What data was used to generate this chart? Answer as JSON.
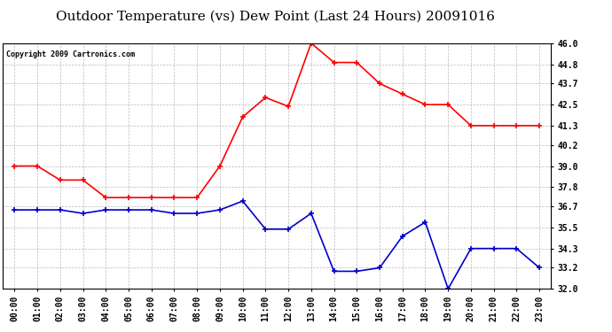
{
  "title": "Outdoor Temperature (vs) Dew Point (Last 24 Hours) 20091016",
  "copyright": "Copyright 2009 Cartronics.com",
  "x_labels": [
    "00:00",
    "01:00",
    "02:00",
    "03:00",
    "04:00",
    "05:00",
    "06:00",
    "07:00",
    "08:00",
    "09:00",
    "10:00",
    "11:00",
    "12:00",
    "13:00",
    "14:00",
    "15:00",
    "16:00",
    "17:00",
    "18:00",
    "19:00",
    "20:00",
    "21:00",
    "22:00",
    "23:00"
  ],
  "temp_data": [
    39.0,
    39.0,
    38.2,
    38.2,
    37.2,
    37.2,
    37.2,
    37.2,
    37.2,
    39.0,
    41.8,
    42.9,
    42.4,
    46.0,
    44.9,
    44.9,
    43.7,
    43.1,
    42.5,
    42.5,
    41.3,
    41.3,
    41.3,
    41.3
  ],
  "dew_data": [
    36.5,
    36.5,
    36.5,
    36.3,
    36.5,
    36.5,
    36.5,
    36.3,
    36.3,
    36.5,
    37.0,
    35.4,
    35.4,
    36.3,
    33.0,
    33.0,
    33.2,
    35.0,
    35.8,
    32.0,
    34.3,
    34.3,
    34.3,
    33.2
  ],
  "temp_color": "#FF0000",
  "dew_color": "#0000CC",
  "background_color": "#FFFFFF",
  "grid_color": "#AAAAAA",
  "ylim": [
    32.0,
    46.0
  ],
  "yticks": [
    32.0,
    33.2,
    34.3,
    35.5,
    36.7,
    37.8,
    39.0,
    40.2,
    41.3,
    42.5,
    43.7,
    44.8,
    46.0
  ],
  "title_fontsize": 11,
  "copyright_fontsize": 6,
  "tick_fontsize": 7,
  "ytick_fontsize": 7
}
